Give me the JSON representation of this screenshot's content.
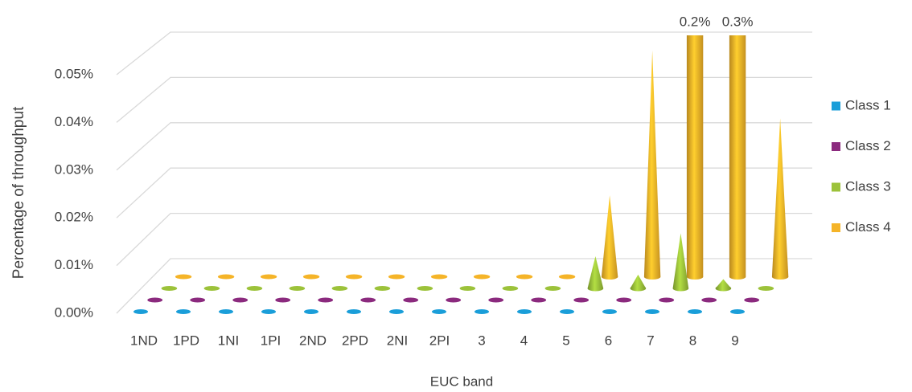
{
  "chart_data": {
    "type": "bar3d",
    "x_label": "EUC band",
    "y_label": "Percentage of throughput",
    "categories": [
      "1ND",
      "1PD",
      "1NI",
      "1PI",
      "2ND",
      "2PD",
      "2NI",
      "2PI",
      "3",
      "4",
      "5",
      "6",
      "7",
      "8",
      "9"
    ],
    "series": [
      {
        "name": "Class 1",
        "color": "#1a9ed9",
        "values": [
          0,
          0,
          0,
          0,
          0,
          0,
          0,
          0,
          0,
          0,
          0,
          0,
          0,
          0,
          0
        ]
      },
      {
        "name": "Class 2",
        "color": "#8b2a7e",
        "values": [
          0,
          0,
          0,
          0,
          0,
          0,
          0,
          0,
          0,
          0,
          0,
          0,
          0,
          0,
          0
        ]
      },
      {
        "name": "Class 3",
        "color": "#9cc23a",
        "values": [
          0,
          0,
          0,
          0,
          0,
          0,
          0,
          0,
          0,
          0,
          0.007,
          0.003,
          0.012,
          0.002,
          0
        ]
      },
      {
        "name": "Class 4",
        "color": "#f5b428",
        "values": [
          0,
          0,
          0,
          0,
          0,
          0,
          0,
          0,
          0,
          0,
          0.018,
          0.05,
          0.2,
          0.3,
          0.035
        ],
        "value_labels": [
          null,
          null,
          null,
          null,
          null,
          null,
          null,
          null,
          null,
          null,
          null,
          null,
          "0.2%",
          "0.3%",
          null
        ]
      }
    ],
    "ylim": [
      0,
      0.05
    ],
    "yticks": [
      {
        "value": 0,
        "label": "0.00%"
      },
      {
        "value": 0.01,
        "label": "0.01%"
      },
      {
        "value": 0.02,
        "label": "0.02%"
      },
      {
        "value": 0.03,
        "label": "0.03%"
      },
      {
        "value": 0.04,
        "label": "0.04%"
      },
      {
        "value": 0.05,
        "label": "0.05%"
      }
    ],
    "grid": true,
    "legend": "right"
  }
}
